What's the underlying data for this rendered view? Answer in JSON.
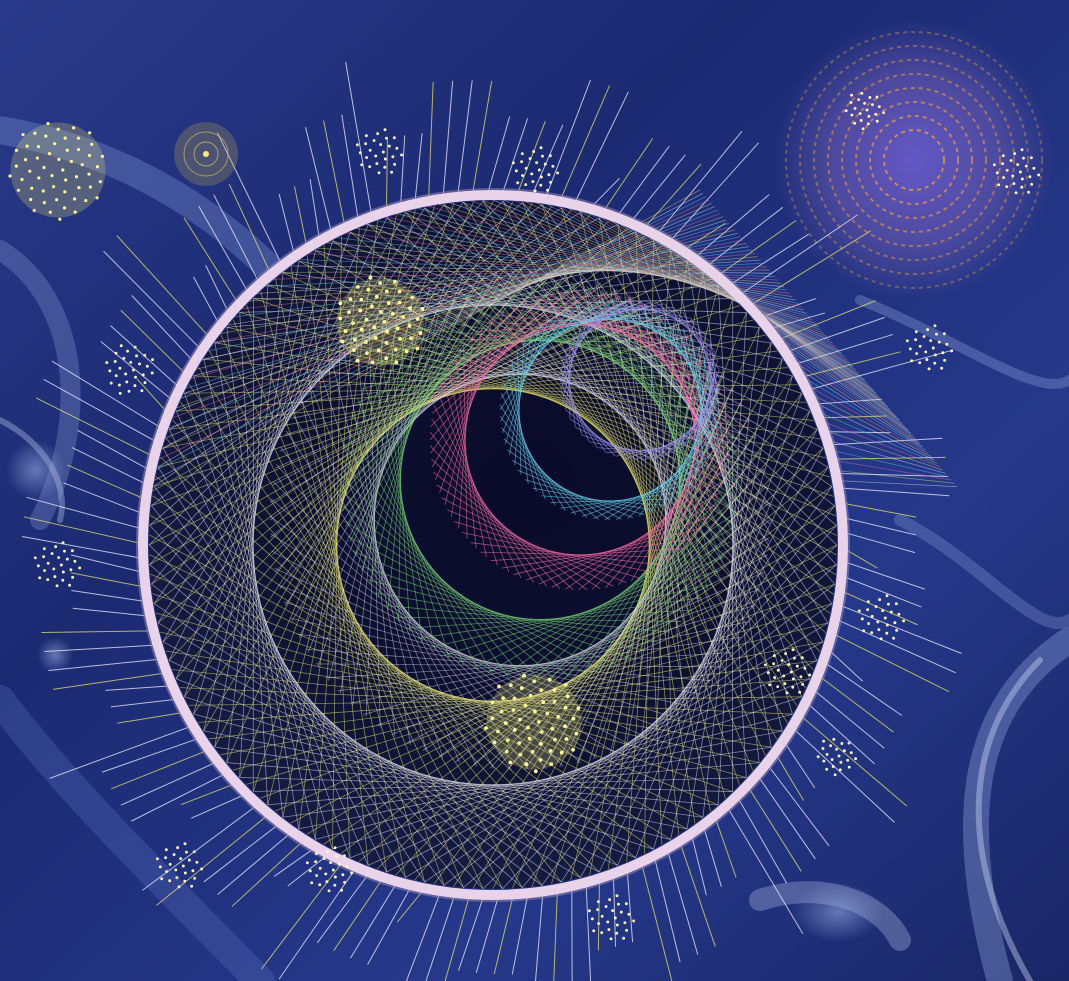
{
  "artwork": {
    "subject": "string-art-mandala",
    "palette": {
      "background_deep": "#162060",
      "background_mid": "#2f4596",
      "background_light": "#6f86c8",
      "ring": "#e6cfe6",
      "thread_yellow": "#e8e46a",
      "thread_white": "#f2f0ff",
      "thread_pink": "#ff6fa8",
      "thread_green": "#7fe07a",
      "thread_cyan": "#66d8f0",
      "thread_violet": "#a89cff",
      "mandala_orange": "#f2a23a",
      "dot_cream": "#fff6c8"
    }
  }
}
